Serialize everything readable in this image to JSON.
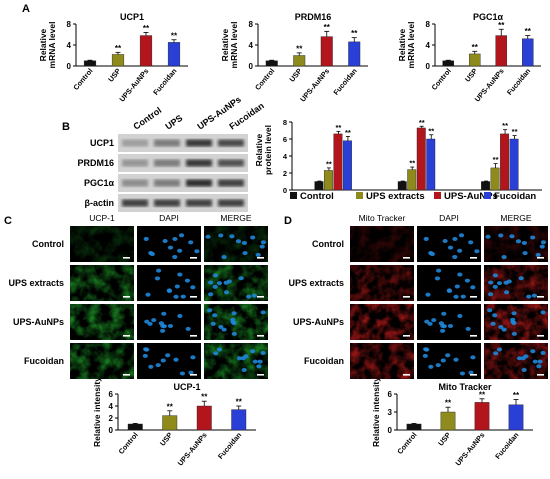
{
  "colors": {
    "control": "#111111",
    "ups_extract": "#8e8a1c",
    "ups_aunps": "#b3151d",
    "fucoidan": "#2a3fd6",
    "green_stain": "#1f9d2a",
    "red_stain": "#c21a1a",
    "dapi": "#1f86d8"
  },
  "panels": {
    "a": "A",
    "b": "B",
    "c": "C",
    "d": "D"
  },
  "chart_data": [
    {
      "id": "A-UCP1",
      "type": "bar",
      "title": "UCP1",
      "ylabel": "Relative mRNA level",
      "ylim": [
        0,
        8
      ],
      "yticks": [
        "0",
        "4",
        "8"
      ],
      "categories": [
        "Control",
        "USP",
        "UPS-AuNPs",
        "Fucoidan"
      ],
      "values": [
        1.0,
        2.2,
        5.8,
        4.5
      ],
      "errors": [
        0.1,
        0.4,
        0.6,
        0.5
      ],
      "sig": [
        "",
        "**",
        "**",
        "**"
      ]
    },
    {
      "id": "A-PRDM16",
      "type": "bar",
      "title": "PRDM16",
      "ylabel": "Relative mRNA level",
      "ylim": [
        0,
        8
      ],
      "yticks": [
        "0",
        "4",
        "8"
      ],
      "categories": [
        "Control",
        "USP",
        "UPS-AuNPs",
        "Fucoidan"
      ],
      "values": [
        1.0,
        2.0,
        5.6,
        4.6
      ],
      "errors": [
        0.1,
        0.5,
        1.0,
        0.8
      ],
      "sig": [
        "",
        "**",
        "**",
        "**"
      ]
    },
    {
      "id": "A-PGC1a",
      "type": "bar",
      "title": "PGC1α",
      "ylabel": "Relative mRNA level",
      "ylim": [
        0,
        8
      ],
      "yticks": [
        "0",
        "4",
        "8"
      ],
      "categories": [
        "Control",
        "USP",
        "UPS-AuNPs",
        "Fucoidan"
      ],
      "values": [
        1.0,
        2.3,
        5.8,
        5.2
      ],
      "errors": [
        0.1,
        0.5,
        1.2,
        0.6
      ],
      "sig": [
        "",
        "**",
        "**",
        "**"
      ]
    },
    {
      "id": "B-protein",
      "type": "bar",
      "ylabel": "Relative protein level",
      "ylim": [
        0,
        8
      ],
      "yticks": [
        "0",
        "2",
        "4",
        "6",
        "8"
      ],
      "groups": [
        "UCP1",
        "PRDM16",
        "PGC1α"
      ],
      "series": [
        {
          "name": "Control",
          "values": [
            1.0,
            1.0,
            1.0
          ],
          "errors": [
            0.05,
            0.05,
            0.05
          ],
          "sig": [
            "",
            "",
            ""
          ]
        },
        {
          "name": "UPS extracts",
          "values": [
            2.3,
            2.4,
            2.6
          ],
          "errors": [
            0.3,
            0.3,
            0.5
          ],
          "sig": [
            "**",
            "**",
            "**"
          ]
        },
        {
          "name": "UPS-AuNPs",
          "values": [
            6.6,
            7.3,
            6.6
          ],
          "errors": [
            0.3,
            0.2,
            0.5
          ],
          "sig": [
            "**",
            "**",
            "**"
          ]
        },
        {
          "name": "Fucoidan",
          "values": [
            5.8,
            6.0,
            6.0
          ],
          "errors": [
            0.5,
            0.5,
            0.4
          ],
          "sig": [
            "**",
            "**",
            "**"
          ]
        }
      ],
      "legend": "bottom"
    },
    {
      "id": "C-UCP1",
      "type": "bar",
      "title": "UCP-1",
      "ylabel": "Relative intensity",
      "ylim": [
        0,
        6
      ],
      "yticks": [
        "0",
        "2",
        "4",
        "6"
      ],
      "categories": [
        "Control",
        "USP",
        "UPS-AuNPs",
        "Fucoidan"
      ],
      "values": [
        1.0,
        2.4,
        4.0,
        3.4
      ],
      "errors": [
        0.1,
        0.8,
        0.8,
        0.6
      ],
      "sig": [
        "",
        "**",
        "**",
        "**"
      ]
    },
    {
      "id": "D-Mito",
      "type": "bar",
      "title": "Mito Tracker",
      "ylabel": "Relative intensity",
      "ylim": [
        0,
        6
      ],
      "yticks": [
        "0",
        "3",
        "6"
      ],
      "categories": [
        "Control",
        "USP",
        "UPS-AuNPs",
        "Fucoidan"
      ],
      "values": [
        1.0,
        3.0,
        4.6,
        4.2
      ],
      "errors": [
        0.1,
        0.8,
        0.6,
        0.9
      ],
      "sig": [
        "",
        "**",
        "**",
        "**"
      ]
    }
  ],
  "blot": {
    "lanes": [
      "Control",
      "UPS",
      "UPS-AuNPs",
      "Fucoidan"
    ],
    "rows": [
      "UCP1",
      "PRDM16",
      "PGC1α",
      "β-actin"
    ],
    "intensity": [
      [
        0.25,
        0.45,
        0.85,
        0.75
      ],
      [
        0.3,
        0.45,
        0.85,
        0.7
      ],
      [
        0.35,
        0.45,
        0.9,
        0.8
      ],
      [
        0.8,
        0.8,
        0.8,
        0.8
      ]
    ]
  },
  "micro_c": {
    "columns": [
      "UCP-1",
      "DAPI",
      "MERGE"
    ],
    "rows": [
      "Control",
      "UPS extracts",
      "UPS-AuNPs",
      "Fucoidan"
    ],
    "stain_level": [
      0.35,
      0.8,
      0.95,
      0.85
    ]
  },
  "micro_d": {
    "columns": [
      "Mito Tracker",
      "DAPI",
      "MERGE"
    ],
    "rows": [
      "Control",
      "UPS extracts",
      "UPS-AuNPs",
      "Fucoidan"
    ],
    "stain_level": [
      0.3,
      0.75,
      0.95,
      0.8
    ]
  }
}
